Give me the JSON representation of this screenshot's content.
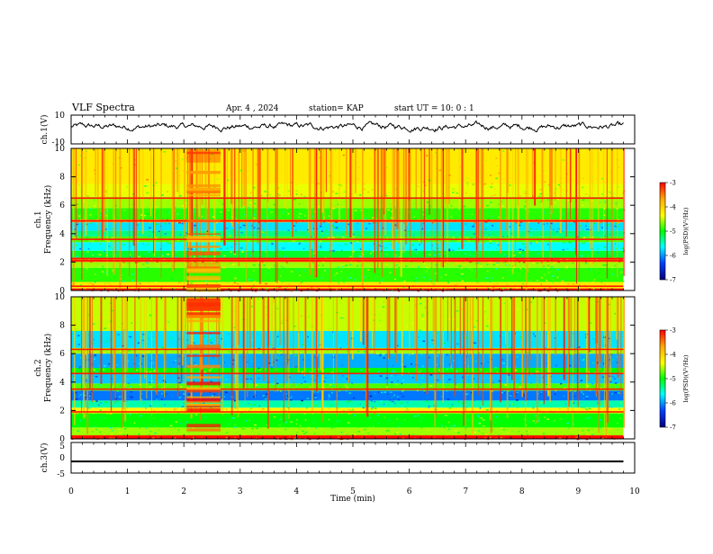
{
  "header": {
    "title": "VLF Spectra",
    "date": "Apr. 4 , 2024",
    "station": "station= KAP",
    "start_ut": "start UT =  10: 0  : 1"
  },
  "colorbar": {
    "label": "log(PSD)(V²/Hz)",
    "ticks": [
      "-3",
      "-4",
      "-5",
      "-6",
      "-7"
    ],
    "values": [
      -3,
      -4,
      -5,
      -6,
      -7
    ],
    "colors": [
      "#ff0000",
      "#ffaa00",
      "#ffff00",
      "#00ff00",
      "#00ffff",
      "#0040ff",
      "#000080"
    ]
  },
  "chart_data": [
    {
      "type": "line",
      "name": "ch1-waveform",
      "ylabel": "ch.1(V)",
      "ylim": [
        -10,
        10
      ],
      "y_ticks": [
        "10",
        "-10"
      ],
      "xlim": [
        0,
        10
      ],
      "description_values": {
        "x_end_min": 9.8,
        "mean": 2,
        "amplitude": 4
      }
    },
    {
      "type": "heatmap",
      "name": "ch1-spectrogram",
      "xlabel": "",
      "ylabel": "ch.1\nFrequency (kHz)",
      "ylabel_lines": [
        "ch.1",
        "Frequency (kHz)"
      ],
      "xlim": [
        0,
        10
      ],
      "ylim": [
        0,
        10
      ],
      "y_ticks": [
        "0",
        "2",
        "4",
        "6",
        "8",
        "10"
      ],
      "data_x_end": 9.8,
      "bands": [
        {
          "f0": 0.0,
          "f1": 0.15,
          "level": -3.0
        },
        {
          "f0": 0.15,
          "f1": 0.6,
          "level": -4.2
        },
        {
          "f0": 0.6,
          "f1": 1.6,
          "level": -4.9
        },
        {
          "f0": 1.6,
          "f1": 2.0,
          "level": -4.6
        },
        {
          "f0": 2.0,
          "f1": 2.3,
          "level": -3.4
        },
        {
          "f0": 2.3,
          "f1": 2.8,
          "level": -5.1
        },
        {
          "f0": 2.8,
          "f1": 3.4,
          "level": -5.6
        },
        {
          "f0": 3.4,
          "f1": 3.8,
          "level": -4.8
        },
        {
          "f0": 3.8,
          "f1": 4.2,
          "level": -5.3
        },
        {
          "f0": 4.2,
          "f1": 4.8,
          "level": -5.7
        },
        {
          "f0": 4.8,
          "f1": 5.0,
          "level": -3.6
        },
        {
          "f0": 5.0,
          "f1": 5.8,
          "level": -4.9
        },
        {
          "f0": 5.8,
          "f1": 6.6,
          "level": -4.6
        },
        {
          "f0": 6.6,
          "f1": 7.5,
          "level": -4.4
        },
        {
          "f0": 7.5,
          "f1": 10.0,
          "level": -4.2
        }
      ],
      "lines": [
        0.3,
        2.1,
        2.25,
        3.6,
        4.9,
        6.5
      ],
      "burst": {
        "t0": 2.05,
        "t1": 2.65,
        "level": -3.8
      }
    },
    {
      "type": "heatmap",
      "name": "ch2-spectrogram",
      "xlabel": "",
      "ylabel": "ch.2\nFrequency (kHz)",
      "ylabel_lines": [
        "ch.2",
        "Frequency (kHz)"
      ],
      "xlim": [
        0,
        10
      ],
      "ylim": [
        0,
        10
      ],
      "y_ticks": [
        "0",
        "2",
        "4",
        "6",
        "8",
        "10"
      ],
      "data_x_end": 9.8,
      "bands": [
        {
          "f0": 0.0,
          "f1": 0.2,
          "level": -3.0
        },
        {
          "f0": 0.2,
          "f1": 0.8,
          "level": -4.6
        },
        {
          "f0": 0.8,
          "f1": 1.8,
          "level": -5.0
        },
        {
          "f0": 1.8,
          "f1": 2.2,
          "level": -4.3
        },
        {
          "f0": 2.2,
          "f1": 2.7,
          "level": -5.4
        },
        {
          "f0": 2.7,
          "f1": 3.4,
          "level": -6.1
        },
        {
          "f0": 3.4,
          "f1": 3.9,
          "level": -4.8
        },
        {
          "f0": 3.9,
          "f1": 4.6,
          "level": -5.8
        },
        {
          "f0": 4.6,
          "f1": 5.0,
          "level": -5.0
        },
        {
          "f0": 5.0,
          "f1": 6.0,
          "level": -5.9
        },
        {
          "f0": 6.0,
          "f1": 6.4,
          "level": -4.6
        },
        {
          "f0": 6.4,
          "f1": 7.6,
          "level": -5.7
        },
        {
          "f0": 7.6,
          "f1": 10.0,
          "level": -4.5
        }
      ],
      "lines": [
        0.2,
        1.9,
        3.5,
        4.6,
        6.3
      ],
      "burst": {
        "t0": 2.05,
        "t1": 2.65,
        "level": -3.6
      }
    },
    {
      "type": "line",
      "name": "ch3-waveform",
      "xlabel": "Time (min)",
      "ylabel": "ch.3(V)",
      "xlim": [
        0,
        10
      ],
      "ylim": [
        -5,
        5
      ],
      "x_ticks": [
        "0",
        "1",
        "2",
        "3",
        "4",
        "5",
        "6",
        "7",
        "8",
        "9",
        "10"
      ],
      "y_ticks": [
        "5",
        "0",
        "-5"
      ],
      "description_values": {
        "x_end_min": 9.8,
        "mean": -1.2,
        "amplitude": 0.3
      }
    }
  ]
}
